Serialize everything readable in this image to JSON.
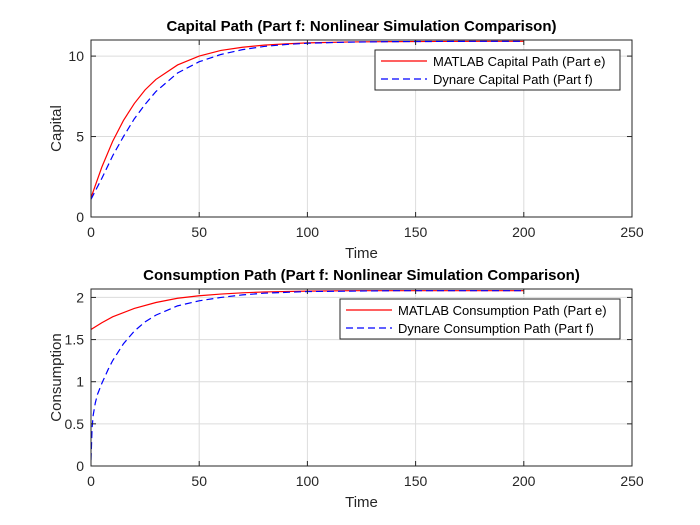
{
  "chart_data": [
    {
      "type": "line",
      "title": "Capital Path (Part f: Nonlinear Simulation Comparison)",
      "xlabel": "Time",
      "ylabel": "Capital",
      "xlim": [
        0,
        250
      ],
      "ylim": [
        0,
        11
      ],
      "xticks": [
        0,
        50,
        100,
        150,
        200,
        250
      ],
      "yticks": [
        0,
        5,
        10
      ],
      "grid": true,
      "legend_position": "top-right",
      "series": [
        {
          "name": "MATLAB Capital Path (Part e)",
          "color": "#ff0000",
          "style": "solid",
          "x": [
            0,
            5,
            10,
            15,
            20,
            25,
            30,
            40,
            50,
            60,
            70,
            80,
            90,
            100,
            120,
            140,
            160,
            180,
            200
          ],
          "y": [
            1.2,
            3.1,
            4.7,
            6.0,
            7.05,
            7.9,
            8.55,
            9.45,
            10.0,
            10.35,
            10.55,
            10.68,
            10.76,
            10.82,
            10.88,
            10.9,
            10.91,
            10.92,
            10.92
          ]
        },
        {
          "name": "Dynare Capital Path (Part f)",
          "color": "#0000ff",
          "style": "dashed",
          "x": [
            0,
            5,
            10,
            15,
            20,
            25,
            30,
            40,
            50,
            60,
            70,
            80,
            90,
            100,
            120,
            140,
            160,
            180,
            200
          ],
          "y": [
            1.1,
            2.4,
            3.8,
            5.0,
            6.1,
            7.0,
            7.8,
            8.95,
            9.65,
            10.1,
            10.4,
            10.6,
            10.72,
            10.8,
            10.87,
            10.9,
            10.91,
            10.92,
            10.92
          ]
        }
      ]
    },
    {
      "type": "line",
      "title": "Consumption Path (Part f: Nonlinear Simulation Comparison)",
      "xlabel": "Time",
      "ylabel": "Consumption",
      "xlim": [
        0,
        250
      ],
      "ylim": [
        0,
        2.1
      ],
      "xticks": [
        0,
        50,
        100,
        150,
        200,
        250
      ],
      "yticks": [
        0,
        0.5,
        1,
        1.5,
        2
      ],
      "grid": true,
      "legend_position": "top-right",
      "series": [
        {
          "name": "MATLAB Consumption Path (Part e)",
          "color": "#ff0000",
          "style": "solid",
          "x": [
            0,
            5,
            10,
            20,
            30,
            40,
            50,
            60,
            70,
            80,
            100,
            120,
            140,
            160,
            180,
            200
          ],
          "y": [
            1.62,
            1.7,
            1.77,
            1.87,
            1.94,
            1.99,
            2.02,
            2.04,
            2.055,
            2.065,
            2.075,
            2.08,
            2.08,
            2.08,
            2.08,
            2.08
          ]
        },
        {
          "name": "Dynare Consumption Path (Part f)",
          "color": "#0000ff",
          "style": "dashed",
          "x": [
            0,
            0.5,
            1,
            2,
            3,
            5,
            8,
            10,
            15,
            20,
            25,
            30,
            40,
            50,
            60,
            70,
            80,
            100,
            120,
            140,
            160,
            180,
            200
          ],
          "y": [
            0.07,
            0.45,
            0.6,
            0.75,
            0.85,
            0.98,
            1.15,
            1.25,
            1.45,
            1.6,
            1.71,
            1.79,
            1.9,
            1.96,
            2.0,
            2.03,
            2.05,
            2.07,
            2.075,
            2.08,
            2.08,
            2.08,
            2.08
          ]
        }
      ]
    }
  ]
}
